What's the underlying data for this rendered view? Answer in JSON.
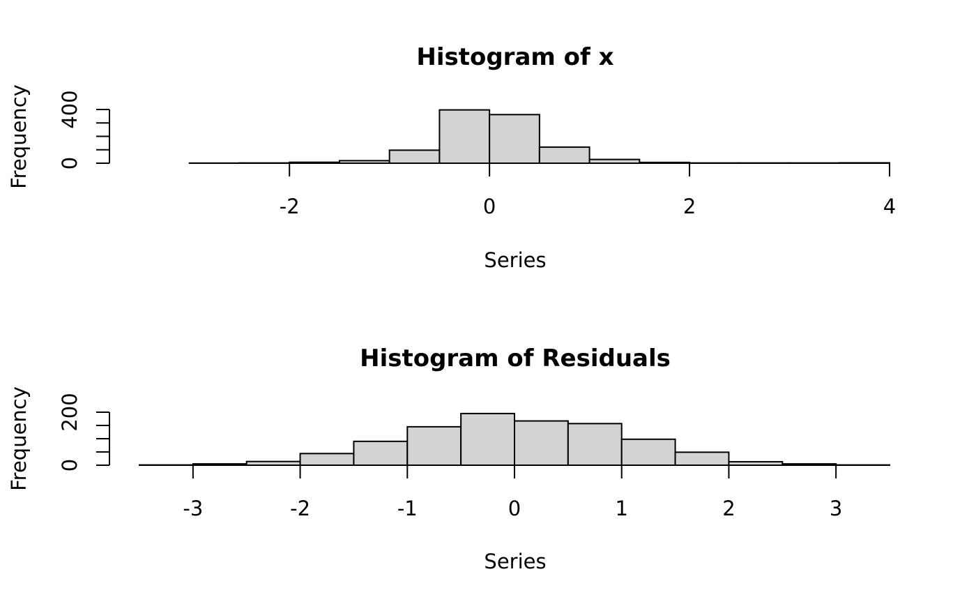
{
  "chart_data": [
    {
      "type": "bar",
      "title": "Histogram of x",
      "xlabel": "Series",
      "ylabel": "Frequency",
      "xlim": [
        -3.5,
        4
      ],
      "ylim": [
        0,
        400
      ],
      "x_ticks": [
        -2,
        0,
        2,
        4
      ],
      "y_ticks": [
        0,
        100,
        200,
        300,
        400
      ],
      "y_tick_labels": [
        "0",
        "",
        "",
        "",
        "400"
      ],
      "bins": [
        {
          "x0": -3.5,
          "x1": -3.0,
          "count": 0
        },
        {
          "x0": -3.0,
          "x1": -2.5,
          "count": 1
        },
        {
          "x0": -2.5,
          "x1": -2.0,
          "count": 2
        },
        {
          "x0": -2.0,
          "x1": -1.5,
          "count": 7
        },
        {
          "x0": -1.5,
          "x1": -1.0,
          "count": 19
        },
        {
          "x0": -1.0,
          "x1": -0.5,
          "count": 97
        },
        {
          "x0": -0.5,
          "x1": 0.0,
          "count": 397
        },
        {
          "x0": 0.0,
          "x1": 0.5,
          "count": 362
        },
        {
          "x0": 0.5,
          "x1": 1.0,
          "count": 120
        },
        {
          "x0": 1.0,
          "x1": 1.5,
          "count": 28
        },
        {
          "x0": 1.5,
          "x1": 2.0,
          "count": 6
        },
        {
          "x0": 2.0,
          "x1": 2.5,
          "count": 2
        },
        {
          "x0": 2.5,
          "x1": 3.0,
          "count": 2
        },
        {
          "x0": 3.0,
          "x1": 3.5,
          "count": 2
        },
        {
          "x0": 3.5,
          "x1": 4.0,
          "count": 3
        }
      ]
    },
    {
      "type": "bar",
      "title": "Histogram of Residuals",
      "xlabel": "Series",
      "ylabel": "Frequency",
      "xlim": [
        -3.5,
        3.5
      ],
      "ylim": [
        0,
        200
      ],
      "x_ticks": [
        -3,
        -2,
        -1,
        0,
        1,
        2,
        3
      ],
      "y_ticks": [
        0,
        50,
        100,
        150,
        200
      ],
      "y_tick_labels": [
        "0",
        "",
        "",
        "",
        "200"
      ],
      "bins": [
        {
          "x0": -3.5,
          "x1": -3.0,
          "count": 1
        },
        {
          "x0": -3.0,
          "x1": -2.5,
          "count": 5
        },
        {
          "x0": -2.5,
          "x1": -2.0,
          "count": 14
        },
        {
          "x0": -2.0,
          "x1": -1.5,
          "count": 44
        },
        {
          "x0": -1.5,
          "x1": -1.0,
          "count": 90
        },
        {
          "x0": -1.0,
          "x1": -0.5,
          "count": 145
        },
        {
          "x0": -0.5,
          "x1": 0.0,
          "count": 195
        },
        {
          "x0": 0.0,
          "x1": 0.5,
          "count": 167
        },
        {
          "x0": 0.5,
          "x1": 1.0,
          "count": 157
        },
        {
          "x0": 1.0,
          "x1": 1.5,
          "count": 98
        },
        {
          "x0": 1.5,
          "x1": 2.0,
          "count": 49
        },
        {
          "x0": 2.0,
          "x1": 2.5,
          "count": 13
        },
        {
          "x0": 2.5,
          "x1": 3.0,
          "count": 5
        },
        {
          "x0": 3.0,
          "x1": 3.5,
          "count": 1
        }
      ]
    }
  ]
}
